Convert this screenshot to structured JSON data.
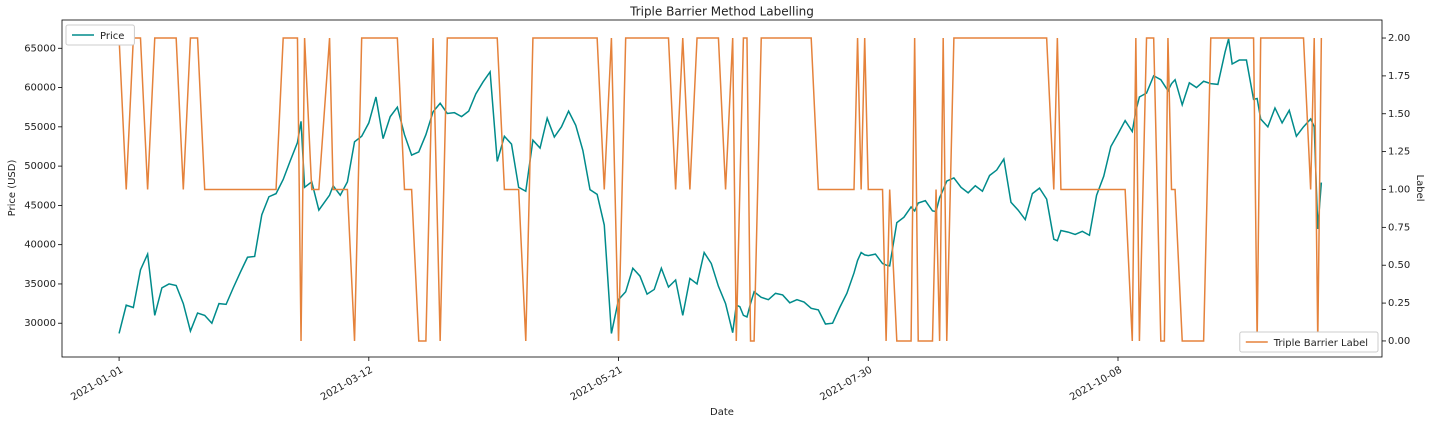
{
  "chart_data": {
    "type": "line",
    "title": "Triple Barrier Method Labelling",
    "xlabel": "Date",
    "ylabel": "Price (USD)",
    "y2label": "Label",
    "x": [
      "2021-01-01",
      "2021-01-03",
      "2021-01-05",
      "2021-01-07",
      "2021-01-09",
      "2021-01-11",
      "2021-01-13",
      "2021-01-15",
      "2021-01-17",
      "2021-01-19",
      "2021-01-21",
      "2021-01-23",
      "2021-01-25",
      "2021-01-27",
      "2021-01-29",
      "2021-01-31",
      "2021-02-02",
      "2021-02-04",
      "2021-02-06",
      "2021-02-08",
      "2021-02-10",
      "2021-02-12",
      "2021-02-14",
      "2021-02-16",
      "2021-02-18",
      "2021-02-20",
      "2021-02-21",
      "2021-02-22",
      "2021-02-24",
      "2021-02-26",
      "2021-03-01",
      "2021-03-02",
      "2021-03-04",
      "2021-03-06",
      "2021-03-08",
      "2021-03-10",
      "2021-03-12",
      "2021-03-14",
      "2021-03-16",
      "2021-03-18",
      "2021-03-20",
      "2021-03-22",
      "2021-03-24",
      "2021-03-26",
      "2021-03-28",
      "2021-03-30",
      "2021-04-01",
      "2021-04-03",
      "2021-04-05",
      "2021-04-07",
      "2021-04-09",
      "2021-04-11",
      "2021-04-13",
      "2021-04-15",
      "2021-04-17",
      "2021-04-19",
      "2021-04-21",
      "2021-04-23",
      "2021-04-25",
      "2021-04-27",
      "2021-04-29",
      "2021-05-01",
      "2021-05-03",
      "2021-05-05",
      "2021-05-07",
      "2021-05-09",
      "2021-05-11",
      "2021-05-13",
      "2021-05-15",
      "2021-05-17",
      "2021-05-19",
      "2021-05-21",
      "2021-05-23",
      "2021-05-25",
      "2021-05-27",
      "2021-05-29",
      "2021-05-31",
      "2021-06-02",
      "2021-06-04",
      "2021-06-06",
      "2021-06-08",
      "2021-06-10",
      "2021-06-12",
      "2021-06-14",
      "2021-06-16",
      "2021-06-18",
      "2021-06-20",
      "2021-06-22",
      "2021-06-23",
      "2021-06-24",
      "2021-06-25",
      "2021-06-26",
      "2021-06-27",
      "2021-06-28",
      "2021-06-30",
      "2021-07-02",
      "2021-07-04",
      "2021-07-06",
      "2021-07-08",
      "2021-07-10",
      "2021-07-12",
      "2021-07-14",
      "2021-07-16",
      "2021-07-18",
      "2021-07-20",
      "2021-07-22",
      "2021-07-24",
      "2021-07-26",
      "2021-07-27",
      "2021-07-28",
      "2021-07-29",
      "2021-07-30",
      "2021-08-01",
      "2021-08-03",
      "2021-08-04",
      "2021-08-05",
      "2021-08-07",
      "2021-08-09",
      "2021-08-11",
      "2021-08-12",
      "2021-08-13",
      "2021-08-15",
      "2021-08-17",
      "2021-08-18",
      "2021-08-19",
      "2021-08-20",
      "2021-08-21",
      "2021-08-23",
      "2021-08-25",
      "2021-08-27",
      "2021-08-29",
      "2021-08-31",
      "2021-09-02",
      "2021-09-04",
      "2021-09-06",
      "2021-09-08",
      "2021-09-10",
      "2021-09-12",
      "2021-09-14",
      "2021-09-16",
      "2021-09-18",
      "2021-09-20",
      "2021-09-21",
      "2021-09-22",
      "2021-09-24",
      "2021-09-26",
      "2021-09-28",
      "2021-09-30",
      "2021-10-02",
      "2021-10-04",
      "2021-10-06",
      "2021-10-08",
      "2021-10-10",
      "2021-10-12",
      "2021-10-13",
      "2021-10-14",
      "2021-10-16",
      "2021-10-18",
      "2021-10-20",
      "2021-10-21",
      "2021-10-22",
      "2021-10-23",
      "2021-10-24",
      "2021-10-26",
      "2021-10-28",
      "2021-10-30",
      "2021-11-01",
      "2021-11-03",
      "2021-11-05",
      "2021-11-07",
      "2021-11-08",
      "2021-11-09",
      "2021-11-11",
      "2021-11-13",
      "2021-11-15",
      "2021-11-16",
      "2021-11-17",
      "2021-11-19",
      "2021-11-21",
      "2021-11-23",
      "2021-11-25",
      "2021-11-27",
      "2021-11-29",
      "2021-12-01",
      "2021-12-02",
      "2021-12-03",
      "2021-12-04"
    ],
    "series": [
      {
        "name": "Price",
        "color": "#008b8b",
        "legend": "upper left",
        "values": [
          28700,
          32300,
          32000,
          36800,
          38800,
          31000,
          34500,
          35000,
          34800,
          32500,
          29000,
          31300,
          31000,
          30000,
          32500,
          32400,
          34500,
          36500,
          38400,
          38500,
          43800,
          46100,
          46500,
          48300,
          50700,
          53000,
          55700,
          47300,
          48000,
          44400,
          46300,
          47500,
          46300,
          48000,
          53100,
          53800,
          55500,
          58800,
          53500,
          56300,
          57500,
          54000,
          51400,
          51800,
          54000,
          56900,
          58000,
          56700,
          56800,
          56300,
          57000,
          59200,
          60700,
          62000,
          50600,
          53800,
          52800,
          47300,
          46800,
          53300,
          52300,
          56100,
          53700,
          55000,
          57000,
          55200,
          52000,
          47000,
          46400,
          42500,
          28700,
          33000,
          34000,
          37000,
          36000,
          33700,
          34300,
          37000,
          34600,
          35500,
          31000,
          35700,
          35000,
          39000,
          37600,
          34700,
          32500,
          28800,
          32300,
          32100,
          31000,
          30800,
          32500,
          34000,
          33300,
          33000,
          33800,
          33600,
          32600,
          33000,
          32700,
          31900,
          31700,
          29900,
          30000,
          32000,
          33800,
          36400,
          38000,
          39000,
          38700,
          38600,
          38800,
          37600,
          37400,
          37300,
          42800,
          43500,
          44800,
          44300,
          45300,
          45600,
          44300,
          44200,
          46000,
          47000,
          48100,
          48500,
          47300,
          46600,
          47500,
          46800,
          48800,
          49500,
          50900,
          45400,
          44400,
          43200,
          46500,
          47200,
          45800,
          40700,
          40500,
          41800,
          41600,
          41300,
          41700,
          41200,
          46300,
          48700,
          52500,
          54100,
          55800,
          54400,
          57000,
          58800,
          59300,
          61500,
          61000,
          60300,
          59600,
          60500,
          61000,
          57800,
          60600,
          60000,
          60800,
          60500,
          60400,
          64500,
          66200,
          63000,
          63500,
          63500,
          58500,
          58600,
          56000,
          55000,
          57400,
          55500,
          57100,
          53800,
          55000,
          56000,
          55000,
          42000,
          47900
        ]
      },
      {
        "name": "Triple Barrier Label",
        "color": "#e5823b",
        "axis": "y2",
        "legend": "lower right",
        "values": [
          2,
          1,
          2,
          2,
          1,
          2,
          2,
          2,
          2,
          1,
          2,
          2,
          1,
          1,
          1,
          1,
          1,
          1,
          1,
          1,
          1,
          1,
          1,
          2,
          2,
          2,
          0,
          2,
          1,
          1,
          2,
          1,
          1,
          1,
          0,
          2,
          2,
          2,
          2,
          2,
          2,
          1,
          1,
          0,
          0,
          2,
          0,
          2,
          2,
          2,
          2,
          2,
          2,
          2,
          2,
          1,
          1,
          1,
          0,
          2,
          2,
          2,
          2,
          2,
          2,
          2,
          2,
          2,
          2,
          1,
          2,
          0,
          2,
          2,
          2,
          2,
          2,
          2,
          2,
          1,
          2,
          1,
          2,
          2,
          2,
          2,
          1,
          2,
          0,
          1,
          2,
          2,
          0,
          0,
          2,
          2,
          2,
          2,
          2,
          2,
          2,
          2,
          1,
          1,
          1,
          1,
          1,
          1,
          2,
          1,
          2,
          1,
          1,
          1,
          0,
          1,
          0,
          0,
          0,
          2,
          0,
          0,
          0,
          1,
          0,
          2,
          0,
          2,
          2,
          2,
          2,
          2,
          2,
          2,
          2,
          2,
          2,
          2,
          2,
          2,
          2,
          1,
          2,
          1,
          1,
          1,
          1,
          1,
          1,
          1,
          1,
          1,
          1,
          0,
          2,
          0,
          2,
          2,
          0,
          0,
          2,
          1,
          1,
          0,
          0,
          0,
          0,
          2,
          2,
          2,
          2,
          2,
          2,
          2,
          2,
          0,
          2,
          2,
          2,
          2,
          2,
          2,
          2,
          1,
          2,
          0,
          2
        ]
      }
    ],
    "xlim": [
      "2020-12-16",
      "2021-12-21"
    ],
    "xticks": [
      "2021-01-01",
      "2021-03-12",
      "2021-05-21",
      "2021-07-30",
      "2021-10-08"
    ],
    "ylim": [
      25700,
      68600
    ],
    "yticks": [
      30000,
      35000,
      40000,
      45000,
      50000,
      55000,
      60000,
      65000
    ],
    "y2lim": [
      -0.106,
      2.119
    ],
    "y2ticks": [
      {
        "value": 0,
        "label": "0.00"
      },
      {
        "value": 0.25,
        "label": "0.25"
      },
      {
        "value": 0.5,
        "label": "0.50"
      },
      {
        "value": 0.75,
        "label": "0.75"
      },
      {
        "value": 1,
        "label": "1.00"
      },
      {
        "value": 1.25,
        "label": "1.25"
      },
      {
        "value": 1.5,
        "label": "1.50"
      },
      {
        "value": 1.75,
        "label": "1.75"
      },
      {
        "value": 2,
        "label": "2.00"
      }
    ]
  }
}
